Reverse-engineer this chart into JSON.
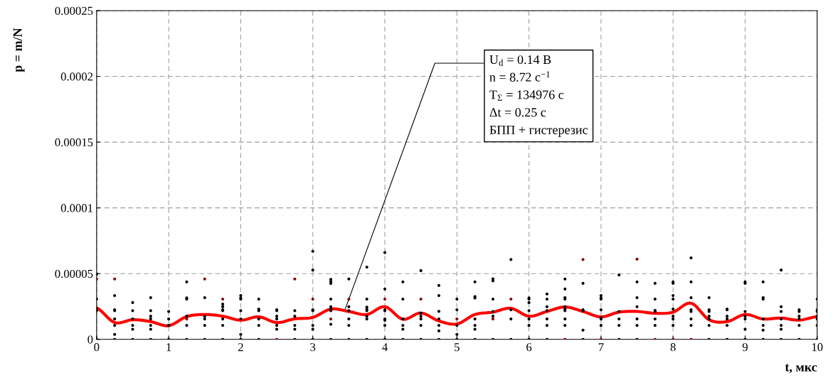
{
  "chart_data": {
    "type": "scatter",
    "xlabel": "t, мкс",
    "ylabel": "p = m/N",
    "xlim": [
      0,
      10
    ],
    "xticks": [
      0,
      1,
      2,
      3,
      4,
      5,
      6,
      7,
      8,
      9,
      10
    ],
    "ylim": [
      0,
      0.00025
    ],
    "yticks": [
      0,
      {
        "value": 5e-05,
        "label": "0.00005"
      },
      {
        "value": 0.0001,
        "label": "0.0001"
      },
      {
        "value": 0.00015,
        "label": "0.00015"
      },
      {
        "value": 0.0002,
        "label": "0.0002"
      },
      {
        "value": 0.00025,
        "label": "0.00025"
      }
    ],
    "grid": true,
    "marker": "circle",
    "annotations": [
      {
        "text": "U$_{d}$ = 0.14 В",
        "x": 3.45,
        "y": 2.3e-05
      },
      "n = 8.72 с$^{−1}$",
      "T$_{Σ}$ = 134976 с",
      "Δt = 0.25 с",
      "БПП + гистерезис"
    ],
    "series": [
      {
        "type": "scatter",
        "color": "#000000",
        "x": [
          0,
          0,
          0,
          0,
          0,
          0.25,
          0.25,
          0.25,
          0.25,
          0.25,
          0.25,
          0.25,
          0.5,
          0.5,
          0.5,
          0.5,
          0.5,
          0.5,
          0.75,
          0.75,
          0.75,
          0.75,
          0.75,
          0.75,
          0.75,
          1,
          1,
          1,
          1,
          1.25,
          1.25,
          1.25,
          1.25,
          1.25,
          1.25,
          1.5,
          1.5,
          1.5,
          1.5,
          1.5,
          1.75,
          1.75,
          1.75,
          1.75,
          1.75,
          1.75,
          1.75,
          2,
          2,
          2,
          2,
          2,
          2,
          2,
          2.25,
          2.25,
          2.25,
          2.25,
          2.25,
          2.25,
          2.5,
          2.5,
          2.5,
          2.5,
          2.5,
          2.5,
          2.75,
          2.75,
          2.75,
          2.75,
          2.75,
          3,
          3,
          3,
          3,
          3,
          3,
          3,
          3.25,
          3.25,
          3.25,
          3.25,
          3.25,
          3.25,
          3.25,
          3.25,
          3.25,
          3.5,
          3.5,
          3.5,
          3.5,
          3.5,
          3.5,
          3.75,
          3.75,
          3.75,
          3.75,
          3.75,
          3.75,
          3.75,
          3.75,
          4,
          4,
          4,
          4,
          4,
          4,
          4,
          4,
          4.25,
          4.25,
          4.25,
          4.25,
          4.25,
          4.25,
          4.5,
          4.5,
          4.5,
          4.5,
          4.5,
          4.5,
          4.75,
          4.75,
          4.75,
          4.75,
          4.75,
          4.75,
          4.75,
          5,
          5,
          5,
          5,
          5,
          5.25,
          5.25,
          5.25,
          5.25,
          5.25,
          5.25,
          5.25,
          5.5,
          5.5,
          5.5,
          5.5,
          5.5,
          5.5,
          5.75,
          5.75,
          5.75,
          5.75,
          6,
          6,
          6,
          6,
          6,
          6,
          6,
          6.25,
          6.25,
          6.25,
          6.25,
          6.25,
          6.25,
          6.25,
          6.5,
          6.5,
          6.5,
          6.5,
          6.5,
          6.5,
          6.5,
          6.5,
          6.5,
          6.75,
          6.75,
          6.75,
          6.75,
          6.75,
          7,
          7,
          7,
          7,
          7,
          7,
          7,
          7.25,
          7.25,
          7.25,
          7.25,
          7.25,
          7.5,
          7.5,
          7.5,
          7.5,
          7.5,
          7.5,
          7.75,
          7.75,
          7.75,
          7.75,
          7.75,
          7.75,
          8,
          8,
          8,
          8,
          8,
          8,
          8,
          8,
          8.25,
          8.25,
          8.25,
          8.25,
          8.25,
          8.25,
          8.25,
          8.5,
          8.5,
          8.5,
          8.5,
          8.5,
          8.5,
          8.5,
          8.75,
          8.75,
          8.75,
          8.75,
          8.75,
          8.75,
          9,
          9,
          9,
          9,
          9,
          9,
          9,
          9.25,
          9.25,
          9.25,
          9.25,
          9.25,
          9.25,
          9.25,
          9.5,
          9.5,
          9.5,
          9.5,
          9.5,
          9.5,
          9.5,
          9.75,
          9.75,
          9.75,
          9.75,
          9.75,
          9.75,
          10,
          10,
          10,
          10,
          10,
          10,
          10
        ],
        "values": [
          0,
          2.18e-05,
          2.35e-05,
          3.06e-05,
          4.96e-05,
          0,
          3.8e-06,
          1.06e-05,
          1.55e-05,
          2.18e-05,
          2.25e-05,
          3.33e-05,
          0,
          7.7e-06,
          1.06e-05,
          1.55e-05,
          2.18e-05,
          2.8e-05,
          0,
          7.7e-06,
          1.06e-05,
          1.55e-05,
          1.76e-05,
          2.18e-05,
          3.17e-05,
          0,
          1.06e-05,
          1.55e-05,
          2.12e-05,
          0,
          1.06e-05,
          1.76e-05,
          3.06e-05,
          3.15e-05,
          4.37e-05,
          0,
          1.06e-05,
          1.55e-05,
          1.76e-05,
          3.17e-05,
          0,
          1.06e-05,
          1.55e-05,
          2.18e-05,
          2.25e-05,
          2.48e-05,
          2.68e-05,
          0,
          3.8e-06,
          1.55e-05,
          2.18e-05,
          3.06e-05,
          3.15e-05,
          3.33e-05,
          0,
          1.06e-05,
          1.55e-05,
          2.18e-05,
          2.3e-05,
          3.06e-05,
          7.7e-06,
          1.06e-05,
          1.55e-05,
          1.76e-05,
          2.18e-05,
          2.25e-05,
          0,
          7.7e-06,
          1.06e-05,
          1.76e-05,
          2.18e-05,
          0,
          7.7e-06,
          1.06e-05,
          2.18e-05,
          2.25e-05,
          5.27e-05,
          6.7e-05,
          0,
          1.15e-05,
          2.18e-05,
          2.3e-05,
          2.48e-05,
          3.06e-05,
          4.25e-05,
          4.4e-05,
          4.56e-05,
          0,
          1.06e-05,
          1.55e-05,
          2.18e-05,
          2.48e-05,
          4.59e-05,
          0,
          1.55e-05,
          1.76e-05,
          2.18e-05,
          2.3e-05,
          2.45e-05,
          3.06e-05,
          5.49e-05,
          0,
          1.06e-05,
          1.46e-05,
          1.55e-05,
          2.18e-05,
          2.25e-05,
          3.83e-05,
          6.6e-05,
          0,
          7.7e-06,
          1.06e-05,
          1.55e-05,
          3.06e-05,
          4.37e-05,
          0,
          1.06e-05,
          1.55e-05,
          1.76e-05,
          2e-05,
          5.23e-05,
          0,
          6.5e-06,
          1.06e-05,
          1.55e-05,
          2.13e-05,
          3.33e-05,
          4.1e-05,
          0,
          3.8e-06,
          1.06e-05,
          2.25e-05,
          3.06e-05,
          0,
          7.7e-06,
          1.06e-05,
          1.55e-05,
          3.15e-05,
          3.25e-05,
          4.37e-05,
          0,
          1.76e-05,
          2.12e-05,
          3.06e-05,
          4.45e-05,
          4.6e-05,
          0,
          1.55e-05,
          2.25e-05,
          6.07e-05,
          0,
          1.06e-05,
          1.55e-05,
          2.18e-05,
          2.8e-05,
          3.06e-05,
          3.15e-05,
          0,
          1.06e-05,
          1.55e-05,
          2.18e-05,
          2.48e-05,
          3.06e-05,
          3.45e-05,
          1.06e-05,
          1.55e-05,
          2.18e-05,
          2.3e-05,
          2.48e-05,
          3.06e-05,
          3.17e-05,
          3.83e-05,
          4.59e-05,
          0,
          7e-06,
          2.18e-05,
          2.25e-05,
          4.26e-05,
          1.06e-05,
          1.55e-05,
          1.65e-05,
          2.25e-05,
          3.06e-05,
          3.15e-05,
          3.33e-05,
          0,
          1.06e-05,
          1.55e-05,
          2.12e-05,
          4.9e-05,
          0,
          1.06e-05,
          1.55e-05,
          2.48e-05,
          3.17e-05,
          4.37e-05,
          1.06e-05,
          1.55e-05,
          2.12e-05,
          2.2e-05,
          3.06e-05,
          4.26e-05,
          1.06e-05,
          1.55e-05,
          1.76e-05,
          2.3e-05,
          3.06e-05,
          3.33e-05,
          4.26e-05,
          4.37e-05,
          1.06e-05,
          1.55e-05,
          2.12e-05,
          2.25e-05,
          3.17e-05,
          4.37e-05,
          6.2e-05,
          0,
          1.06e-05,
          1.55e-05,
          1.76e-05,
          2.12e-05,
          2.25e-05,
          3.17e-05,
          0,
          1.06e-05,
          1.55e-05,
          1.76e-05,
          2.25e-05,
          2.3e-05,
          0,
          7.7e-06,
          1.55e-05,
          1.76e-05,
          2.12e-05,
          4.26e-05,
          4.37e-05,
          0,
          7e-06,
          1.06e-05,
          1.55e-05,
          3.06e-05,
          3.17e-05,
          4.37e-05,
          0,
          7.7e-06,
          1.06e-05,
          1.55e-05,
          2.12e-05,
          2.48e-05,
          5.27e-05,
          0,
          1.06e-05,
          1.55e-05,
          1.76e-05,
          2.12e-05,
          2.25e-05,
          0,
          1.06e-05,
          1.55e-05,
          1.76e-05,
          2.12e-05,
          2.25e-05,
          3.06e-05
        ]
      },
      {
        "type": "scatter",
        "color": "#8b0000",
        "x": [
          0,
          0.25,
          1.25,
          1.5,
          1.75,
          2.5,
          2.75,
          3,
          3.25,
          3.5,
          4,
          4.5,
          5,
          5.5,
          5.75,
          6.5,
          6.75,
          7,
          7.5,
          7.75,
          8,
          8.25
        ],
        "values": [
          4.59e-05,
          4.59e-05,
          1.55e-05,
          4.59e-05,
          3.06e-05,
          0,
          4.59e-05,
          3.06e-05,
          1.55e-05,
          3.06e-05,
          3.06e-05,
          3.06e-05,
          1.55e-05,
          1.55e-05,
          3.06e-05,
          0,
          6.07e-05,
          0,
          6.1e-05,
          0,
          0,
          0
        ]
      },
      {
        "type": "line",
        "marker": "none",
        "color": "#ff0000",
        "x": [
          0,
          0.25,
          0.5,
          0.75,
          1,
          1.25,
          1.5,
          1.75,
          2,
          2.25,
          2.5,
          2.75,
          3,
          3.25,
          3.5,
          3.75,
          4,
          4.25,
          4.5,
          4.75,
          5,
          5.25,
          5.5,
          5.75,
          6,
          6.25,
          6.5,
          6.75,
          7,
          7.25,
          7.5,
          7.75,
          8,
          8.25,
          8.5,
          8.75,
          9,
          9.25,
          9.5,
          9.75,
          10
        ],
        "values": [
          2.39e-05,
          1.28e-05,
          1.49e-05,
          1.35e-05,
          1.04e-05,
          1.73e-05,
          1.89e-05,
          1.76e-05,
          1.46e-05,
          1.71e-05,
          1.28e-05,
          1.56e-05,
          1.67e-05,
          2.3e-05,
          2.12e-05,
          1.89e-05,
          2.48e-05,
          1.53e-05,
          2e-05,
          1.4e-05,
          1.17e-05,
          1.89e-05,
          2.07e-05,
          2.36e-05,
          1.76e-05,
          2.12e-05,
          2.46e-05,
          2.12e-05,
          1.71e-05,
          2.07e-05,
          2.12e-05,
          1.98e-05,
          2.07e-05,
          2.75e-05,
          1.49e-05,
          1.35e-05,
          1.89e-05,
          1.55e-05,
          1.62e-05,
          1.46e-05,
          1.73e-05
        ]
      }
    ]
  }
}
